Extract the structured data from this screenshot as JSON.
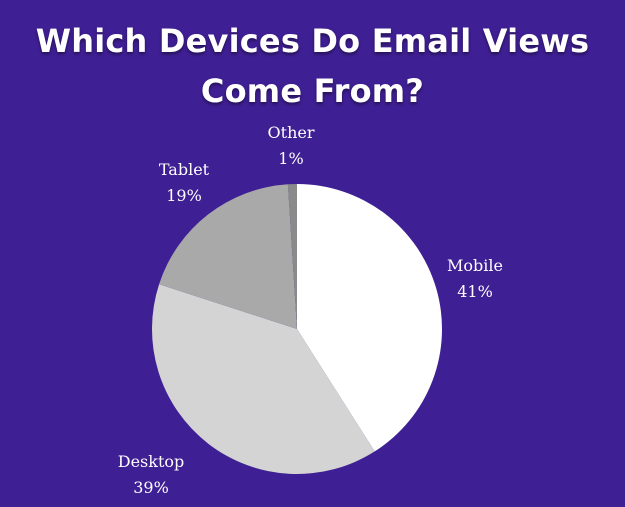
{
  "title": {
    "line1": "Which Devices Do Email Views",
    "line2": "Come From?"
  },
  "colors": {
    "background": "#3f1f94",
    "text": "#ffffff"
  },
  "chart_data": {
    "type": "pie",
    "title": "Which Devices Do Email Views Come From?",
    "slices": [
      {
        "label": "Mobile",
        "value": 41,
        "value_label": "41%",
        "color": "#ffffff"
      },
      {
        "label": "Desktop",
        "value": 39,
        "value_label": "39%",
        "color": "#d4d4d4"
      },
      {
        "label": "Tablet",
        "value": 19,
        "value_label": "19%",
        "color": "#a9a9a9"
      },
      {
        "label": "Other",
        "value": 1,
        "value_label": "1%",
        "color": "#8a8a8a"
      }
    ]
  }
}
